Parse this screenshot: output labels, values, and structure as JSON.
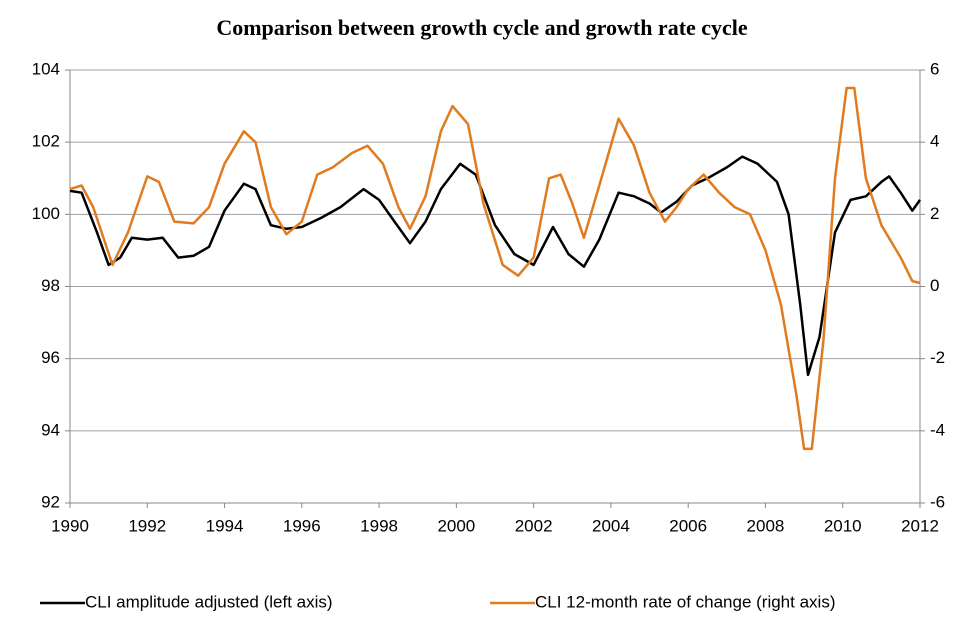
{
  "chart_data": {
    "type": "line",
    "title": "Comparison between growth cycle and growth rate cycle",
    "xlim": [
      1990,
      2012
    ],
    "xticks": [
      1990,
      1992,
      1994,
      1996,
      1998,
      2000,
      2002,
      2004,
      2006,
      2008,
      2010,
      2012
    ],
    "ylim": [
      92,
      104
    ],
    "yticks": [
      92,
      94,
      96,
      98,
      100,
      102,
      104
    ],
    "y2lim": [
      -6,
      6
    ],
    "y2ticks": [
      -6,
      -4,
      -2,
      0,
      2,
      4,
      6
    ],
    "grid": true,
    "legend": "bottom",
    "series": [
      {
        "name": "CLI amplitude adjusted (left axis)",
        "color": "#000000",
        "axis": "y",
        "x": [
          1990,
          1990.3,
          1990.7,
          1991.0,
          1991.3,
          1991.6,
          1992.0,
          1992.4,
          1992.8,
          1993.2,
          1993.6,
          1994.0,
          1994.5,
          1994.8,
          1995.2,
          1995.6,
          1996.0,
          1996.5,
          1997.0,
          1997.6,
          1998.0,
          1998.4,
          1998.8,
          1999.2,
          1999.6,
          2000.1,
          2000.5,
          2001.0,
          2001.5,
          2002.0,
          2002.5,
          2002.9,
          2003.3,
          2003.7,
          2004.2,
          2004.6,
          2005.0,
          2005.3,
          2005.7,
          2006.1,
          2006.5,
          2007.0,
          2007.4,
          2007.8,
          2008.3,
          2008.6,
          2008.9,
          2009.1,
          2009.4,
          2009.8,
          2010.2,
          2010.6,
          2011.0,
          2011.2,
          2011.5,
          2011.8,
          2012.0
        ],
        "values": [
          100.65,
          100.6,
          99.5,
          98.6,
          98.8,
          99.35,
          99.3,
          99.35,
          98.8,
          98.85,
          99.1,
          100.1,
          100.85,
          100.7,
          99.7,
          99.6,
          99.65,
          99.9,
          100.2,
          100.7,
          100.4,
          99.8,
          99.2,
          99.8,
          100.7,
          101.4,
          101.1,
          99.7,
          98.9,
          98.6,
          99.65,
          98.9,
          98.55,
          99.3,
          100.6,
          100.5,
          100.3,
          100.05,
          100.35,
          100.8,
          101.0,
          101.3,
          101.6,
          101.4,
          100.9,
          100.0,
          97.5,
          95.55,
          96.6,
          99.5,
          100.4,
          100.5,
          100.9,
          101.05,
          100.6,
          100.1,
          100.4
        ]
      },
      {
        "name": "CLI 12-month rate of change (right axis)",
        "color": "#e07b20",
        "axis": "y2",
        "x": [
          1990,
          1990.3,
          1990.6,
          1991.1,
          1991.5,
          1992.0,
          1992.3,
          1992.7,
          1993.2,
          1993.6,
          1994.0,
          1994.5,
          1994.8,
          1995.2,
          1995.6,
          1996.0,
          1996.4,
          1996.8,
          1997.3,
          1997.7,
          1998.1,
          1998.5,
          1998.8,
          1999.2,
          1999.6,
          1999.9,
          2000.3,
          2000.7,
          2001.2,
          2001.6,
          2002.0,
          2002.4,
          2002.7,
          2003.0,
          2003.3,
          2003.7,
          2004.2,
          2004.6,
          2005.0,
          2005.4,
          2005.7,
          2006.0,
          2006.4,
          2006.8,
          2007.2,
          2007.6,
          2008.0,
          2008.4,
          2008.8,
          2009.0,
          2009.2,
          2009.5,
          2009.8,
          2010.1,
          2010.3,
          2010.6,
          2011.0,
          2011.5,
          2011.8,
          2012.0
        ],
        "values": [
          2.7,
          2.8,
          2.2,
          0.6,
          1.5,
          3.05,
          2.9,
          1.8,
          1.75,
          2.2,
          3.4,
          4.3,
          4.0,
          2.2,
          1.45,
          1.8,
          3.1,
          3.3,
          3.7,
          3.9,
          3.4,
          2.2,
          1.6,
          2.5,
          4.3,
          5.0,
          4.5,
          2.3,
          0.6,
          0.3,
          0.8,
          3.0,
          3.1,
          2.3,
          1.35,
          2.8,
          4.65,
          3.9,
          2.6,
          1.8,
          2.2,
          2.7,
          3.1,
          2.6,
          2.2,
          2.0,
          1.0,
          -0.5,
          -3.0,
          -4.5,
          -4.5,
          -1.5,
          3.0,
          5.5,
          5.5,
          3.0,
          1.7,
          0.8,
          0.15,
          0.1
        ]
      }
    ]
  }
}
